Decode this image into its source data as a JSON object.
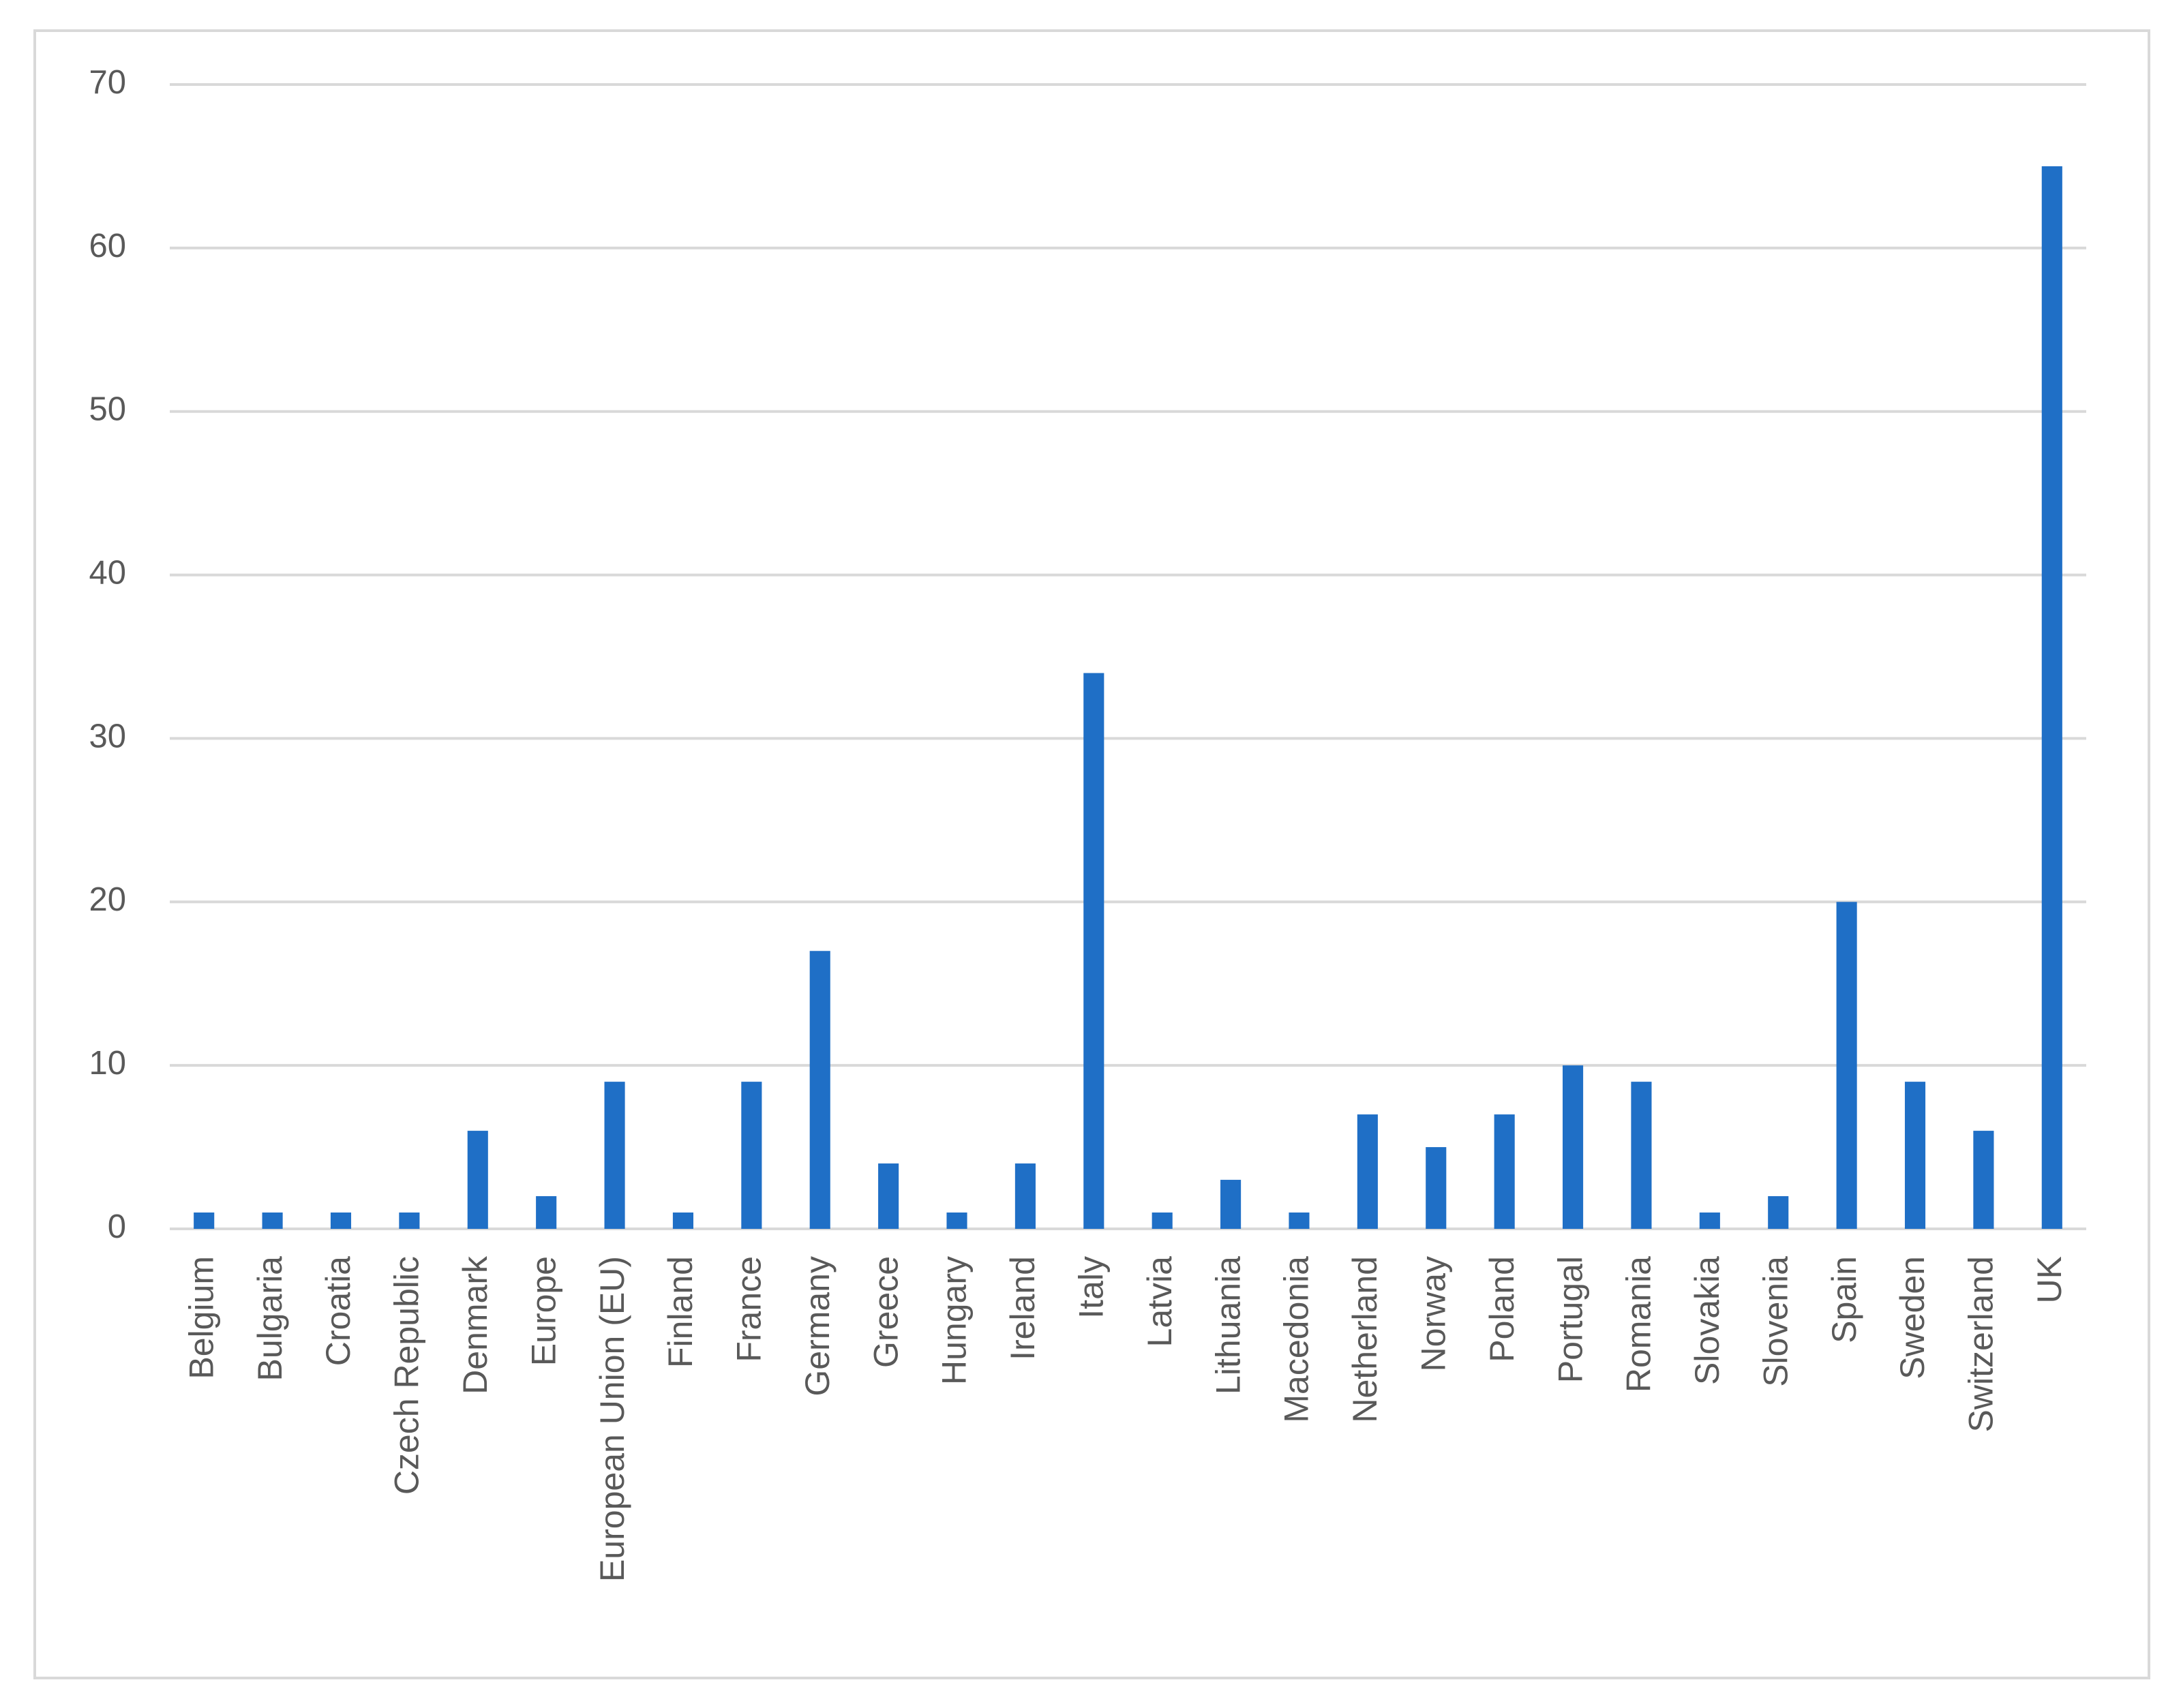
{
  "chart_data": {
    "type": "bar",
    "categories": [
      "Belgium",
      "Bulgaria",
      "Croatia",
      "Czech Republic",
      "Denmark",
      "Europe",
      "European Union (EU)",
      "Finland",
      "France",
      "Germany",
      "Greece",
      "Hungary",
      "Ireland",
      "Italy",
      "Latvia",
      "Lithuania",
      "Macedonia",
      "Netherland",
      "Norway",
      "Poland",
      "Portugal",
      "Romania",
      "Slovakia",
      "Slovenia",
      "Spain",
      "Sweden",
      "Switzerland",
      "UK"
    ],
    "values": [
      1,
      1,
      1,
      1,
      6,
      2,
      9,
      1,
      9,
      17,
      4,
      1,
      4,
      34,
      1,
      3,
      1,
      7,
      5,
      7,
      10,
      9,
      1,
      2,
      20,
      9,
      6,
      65
    ],
    "color": "#1f6fc6",
    "ylim": [
      0,
      70
    ],
    "yticks": [
      0,
      10,
      20,
      30,
      40,
      50,
      60,
      70
    ],
    "grid": true
  }
}
